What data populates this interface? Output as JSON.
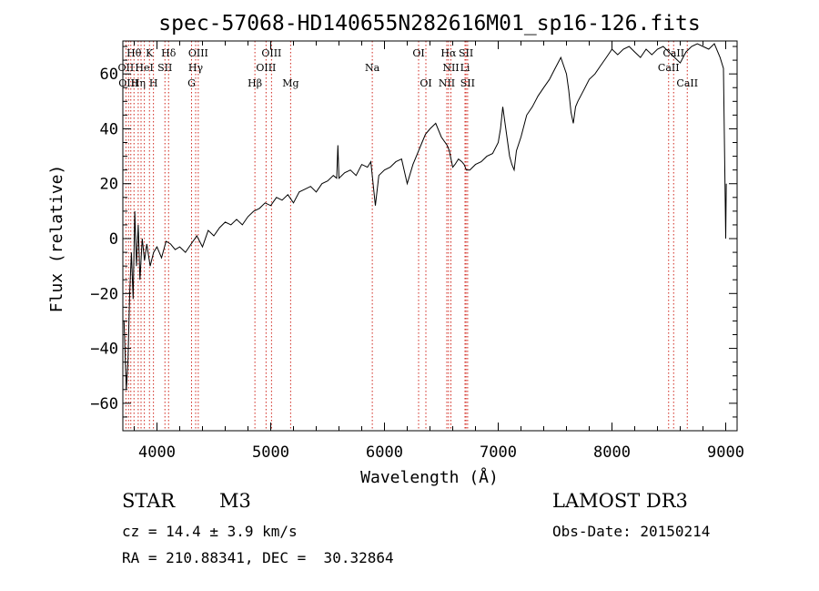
{
  "chart_data": {
    "type": "line",
    "title": "spec-57068-HD140655N282616M01_sp16-126.fits",
    "xlabel": "Wavelength (Å)",
    "ylabel": "Flux (relative)",
    "xlim": [
      3700,
      9100
    ],
    "ylim": [
      -70,
      72
    ],
    "xticks": [
      4000,
      5000,
      6000,
      7000,
      8000,
      9000
    ],
    "xtick_labels": [
      "4000",
      "5000",
      "6000",
      "7000",
      "8000",
      "9000"
    ],
    "yticks": [
      -60,
      -40,
      -20,
      0,
      20,
      40,
      60
    ],
    "ytick_labels": [
      "−60",
      "−40",
      "−20",
      "0",
      "20",
      "40",
      "60"
    ],
    "series": [
      {
        "name": "flux",
        "x": [
          3710,
          3730,
          3745,
          3760,
          3775,
          3790,
          3805,
          3820,
          3835,
          3850,
          3870,
          3890,
          3910,
          3940,
          3970,
          4000,
          4040,
          4080,
          4120,
          4160,
          4200,
          4250,
          4300,
          4350,
          4400,
          4450,
          4500,
          4550,
          4600,
          4650,
          4700,
          4750,
          4800,
          4850,
          4900,
          4950,
          5000,
          5050,
          5100,
          5150,
          5200,
          5250,
          5300,
          5350,
          5400,
          5450,
          5500,
          5550,
          5580,
          5590,
          5600,
          5650,
          5700,
          5750,
          5800,
          5850,
          5880,
          5900,
          5920,
          5950,
          6000,
          6050,
          6100,
          6150,
          6200,
          6250,
          6290,
          6300,
          6320,
          6340,
          6360,
          6380,
          6400,
          6450,
          6500,
          6550,
          6570,
          6580,
          6600,
          6620,
          6650,
          6680,
          6700,
          6720,
          6750,
          6800,
          6850,
          6900,
          6950,
          7000,
          7020,
          7040,
          7060,
          7080,
          7100,
          7120,
          7140,
          7160,
          7200,
          7250,
          7300,
          7350,
          7400,
          7450,
          7500,
          7550,
          7600,
          7620,
          7640,
          7660,
          7680,
          7700,
          7750,
          7800,
          7850,
          7900,
          7950,
          8000,
          8050,
          8100,
          8150,
          8200,
          8250,
          8300,
          8350,
          8400,
          8450,
          8500,
          8550,
          8600,
          8650,
          8700,
          8750,
          8800,
          8850,
          8900,
          8950,
          8980,
          9000,
          9005
        ],
        "y": [
          -30,
          -55,
          -45,
          -20,
          -5,
          -22,
          10,
          -10,
          5,
          -15,
          0,
          -8,
          -2,
          -10,
          -5,
          -3,
          -7,
          -1,
          -2,
          -4,
          -3,
          -5,
          -2,
          1,
          -3,
          3,
          1,
          4,
          6,
          5,
          7,
          5,
          8,
          10,
          11,
          13,
          12,
          15,
          14,
          16,
          13,
          17,
          18,
          19,
          17,
          20,
          21,
          23,
          22,
          34,
          22,
          24,
          25,
          23,
          27,
          26,
          28,
          20,
          12,
          23,
          25,
          26,
          28,
          29,
          20,
          27,
          31,
          32,
          34,
          36,
          38,
          39,
          40,
          42,
          37,
          34,
          32,
          30,
          26,
          27,
          29,
          28,
          27,
          25,
          25,
          27,
          28,
          30,
          31,
          35,
          40,
          48,
          42,
          36,
          30,
          27,
          25,
          32,
          37,
          45,
          48,
          52,
          55,
          58,
          62,
          66,
          60,
          54,
          46,
          42,
          48,
          50,
          54,
          58,
          60,
          63,
          66,
          69,
          67,
          69,
          70,
          68,
          66,
          69,
          67,
          69,
          70,
          68,
          66,
          64,
          68,
          70,
          71,
          70,
          69,
          71,
          66,
          62,
          0,
          20
        ]
      }
    ],
    "annotations": {
      "spectral_lines_top": [
        {
          "label": "Hθ",
          "x": 3798
        },
        {
          "label": "K",
          "x": 3934
        },
        {
          "label": "Hδ",
          "x": 4102
        },
        {
          "label": "OIII",
          "x": 4363
        },
        {
          "label": "OIII",
          "x": 5007
        },
        {
          "label": "OI",
          "x": 6300
        },
        {
          "label": "Hα",
          "x": 6563
        },
        {
          "label": "SII",
          "x": 6717
        },
        {
          "label": "CaII",
          "x": 8542
        }
      ],
      "spectral_lines_mid": [
        {
          "label": "OII",
          "x": 3727
        },
        {
          "label": "HeI",
          "x": 3889
        },
        {
          "label": "SII",
          "x": 4070
        },
        {
          "label": "Hγ",
          "x": 4340
        },
        {
          "label": "OIII",
          "x": 4959
        },
        {
          "label": "Na",
          "x": 5893
        },
        {
          "label": "NII",
          "x": 6584
        },
        {
          "label": "Li",
          "x": 6708
        },
        {
          "label": "CaII",
          "x": 8498
        }
      ],
      "spectral_lines_low": [
        {
          "label": "OIII",
          "x": 3750
        },
        {
          "label": "Hη",
          "x": 3835
        },
        {
          "label": "H",
          "x": 3969
        },
        {
          "label": "G",
          "x": 4304
        },
        {
          "label": "Hβ",
          "x": 4861
        },
        {
          "label": "Mg",
          "x": 5175
        },
        {
          "label": "OI",
          "x": 6364
        },
        {
          "label": "NII",
          "x": 6548
        },
        {
          "label": "SII",
          "x": 6731
        },
        {
          "label": "CaII",
          "x": 8662
        }
      ],
      "extra_vlines_x": [
        3770,
        3860
      ]
    }
  },
  "info": {
    "object_class": "STAR",
    "subclass": "M3",
    "survey": "LAMOST DR3",
    "cz": "cz = 14.4 ± 3.9 km/s",
    "obs_date": "Obs-Date: 20150214",
    "coords": "RA = 210.88341, DEC =  30.32864"
  }
}
